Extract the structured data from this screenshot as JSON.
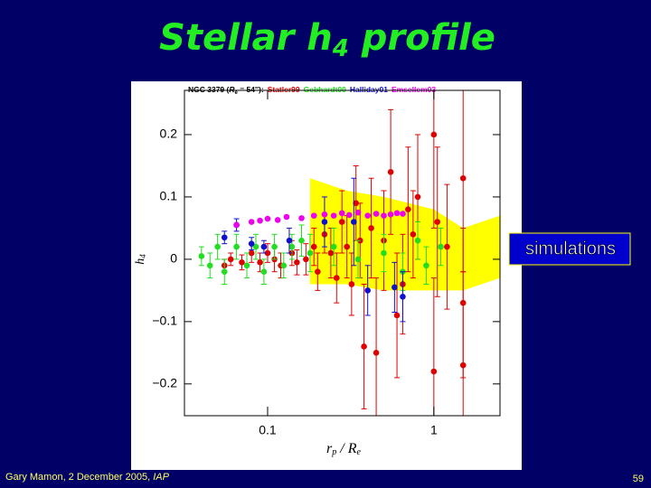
{
  "chart_data": {
    "type": "scatter",
    "title": [
      "Stellar h",
      "4",
      " profile"
    ],
    "legend_title": [
      "NGC 3379 (",
      "R",
      "e",
      " = 54''):"
    ],
    "xlabel": [
      "r",
      "p",
      " / ",
      "R",
      "e"
    ],
    "ylabel": [
      "h",
      "4"
    ],
    "xlog": true,
    "xlim": [
      0.0316,
      2.5
    ],
    "ylim": [
      -0.251,
      0.271
    ],
    "xticks": [
      0.1,
      1
    ],
    "yticks": [
      {
        "value": -0.2,
        "label": "−0.2"
      },
      {
        "value": -0.1,
        "label": "−0.1"
      },
      0,
      0.1,
      0.2
    ],
    "band": {
      "name": "simulations",
      "color": "#ffff00",
      "x": [
        0.18,
        0.3,
        0.5,
        1.0,
        1.5,
        2.5
      ],
      "upper": [
        0.13,
        0.11,
        0.1,
        0.08,
        0.05,
        0.07
      ],
      "lower": [
        -0.04,
        -0.04,
        -0.05,
        -0.05,
        -0.05,
        -0.03
      ]
    },
    "series": [
      {
        "name": "Statler99",
        "color": "#e00000",
        "x": [
          0.055,
          0.06,
          0.07,
          0.08,
          0.09,
          0.1,
          0.11,
          0.12,
          0.14,
          0.15,
          0.17,
          0.19,
          0.2,
          0.22,
          0.24,
          0.26,
          0.28,
          0.3,
          0.32,
          0.34,
          0.36,
          0.38,
          0.42,
          0.45,
          0.5,
          0.55,
          0.6,
          0.65,
          0.7,
          0.75,
          0.8,
          1.0,
          1.0,
          1.05,
          1.2,
          1.5,
          1.5,
          1.5
        ],
        "values": [
          -0.01,
          0,
          -0.005,
          0.01,
          -0.005,
          0.01,
          0,
          -0.01,
          0.01,
          -0.005,
          0,
          0.02,
          -0.02,
          0.04,
          0.01,
          -0.03,
          0.06,
          0.02,
          -0.04,
          0.09,
          0.03,
          -0.14,
          0.05,
          -0.15,
          0.03,
          0.14,
          -0.09,
          -0.04,
          0.08,
          0.04,
          0.1,
          0.2,
          -0.18,
          0.06,
          0.02,
          0.13,
          -0.17,
          -0.07
        ],
        "errors": [
          0.01,
          0.01,
          0.012,
          0.015,
          0.015,
          0.015,
          0.02,
          0.02,
          0.02,
          0.02,
          0.025,
          0.03,
          0.03,
          0.03,
          0.04,
          0.04,
          0.05,
          0.05,
          0.05,
          0.06,
          0.06,
          0.1,
          0.08,
          0.12,
          0.08,
          0.1,
          0.1,
          0.08,
          0.1,
          0.07,
          0.1,
          0.15,
          0.15,
          0.12,
          0.1,
          0.15,
          0.15,
          0.12
        ]
      },
      {
        "name": "Gebhardt00",
        "color": "#22dd22",
        "x": [
          0.04,
          0.045,
          0.05,
          0.055,
          0.065,
          0.075,
          0.085,
          0.095,
          0.11,
          0.125,
          0.14,
          0.16,
          0.18,
          0.25,
          0.35,
          0.5,
          0.65,
          0.8,
          0.9,
          1.1
        ],
        "values": [
          0.005,
          -0.01,
          0.02,
          -0.02,
          0.02,
          -0.01,
          0.02,
          -0.02,
          0.02,
          -0.01,
          0.02,
          0.03,
          0.01,
          0.02,
          0,
          0.01,
          -0.02,
          0.03,
          -0.01,
          0.02
        ],
        "errors": [
          0.015,
          0.02,
          0.02,
          0.02,
          0.02,
          0.02,
          0.02,
          0.02,
          0.02,
          0.02,
          0.02,
          0.025,
          0.03,
          0.03,
          0.03,
          0.03,
          0.03,
          0.03,
          0.03,
          0.03
        ]
      },
      {
        "name": "Halliday01",
        "color": "#1010d0",
        "x": [
          0.055,
          0.065,
          0.08,
          0.095,
          0.135,
          0.22,
          0.33,
          0.4,
          0.58,
          0.65
        ],
        "values": [
          0.035,
          0.055,
          0.025,
          0.02,
          0.03,
          0.06,
          0.06,
          -0.05,
          -0.045,
          -0.06
        ],
        "errors": [
          0.01,
          0.01,
          0.01,
          0.01,
          0.02,
          0.04,
          0.07,
          0.04,
          0.04,
          0.04
        ]
      },
      {
        "name": "Emsellem03",
        "color": "#ee00ee",
        "x": [
          0.065,
          0.08,
          0.09,
          0.1,
          0.115,
          0.13,
          0.16,
          0.19,
          0.22,
          0.25,
          0.28,
          0.31,
          0.35,
          0.4,
          0.45,
          0.5,
          0.55,
          0.6,
          0.65
        ],
        "values": [
          0.055,
          0.06,
          0.062,
          0.065,
          0.063,
          0.068,
          0.066,
          0.07,
          0.072,
          0.07,
          0.074,
          0.071,
          0.075,
          0.07,
          0.073,
          0.07,
          0.072,
          0.074,
          0.073
        ]
      }
    ]
  },
  "footer": {
    "author": "Gary Mamon, 2 December 2005, ",
    "venue": "IAP",
    "page": "59"
  }
}
